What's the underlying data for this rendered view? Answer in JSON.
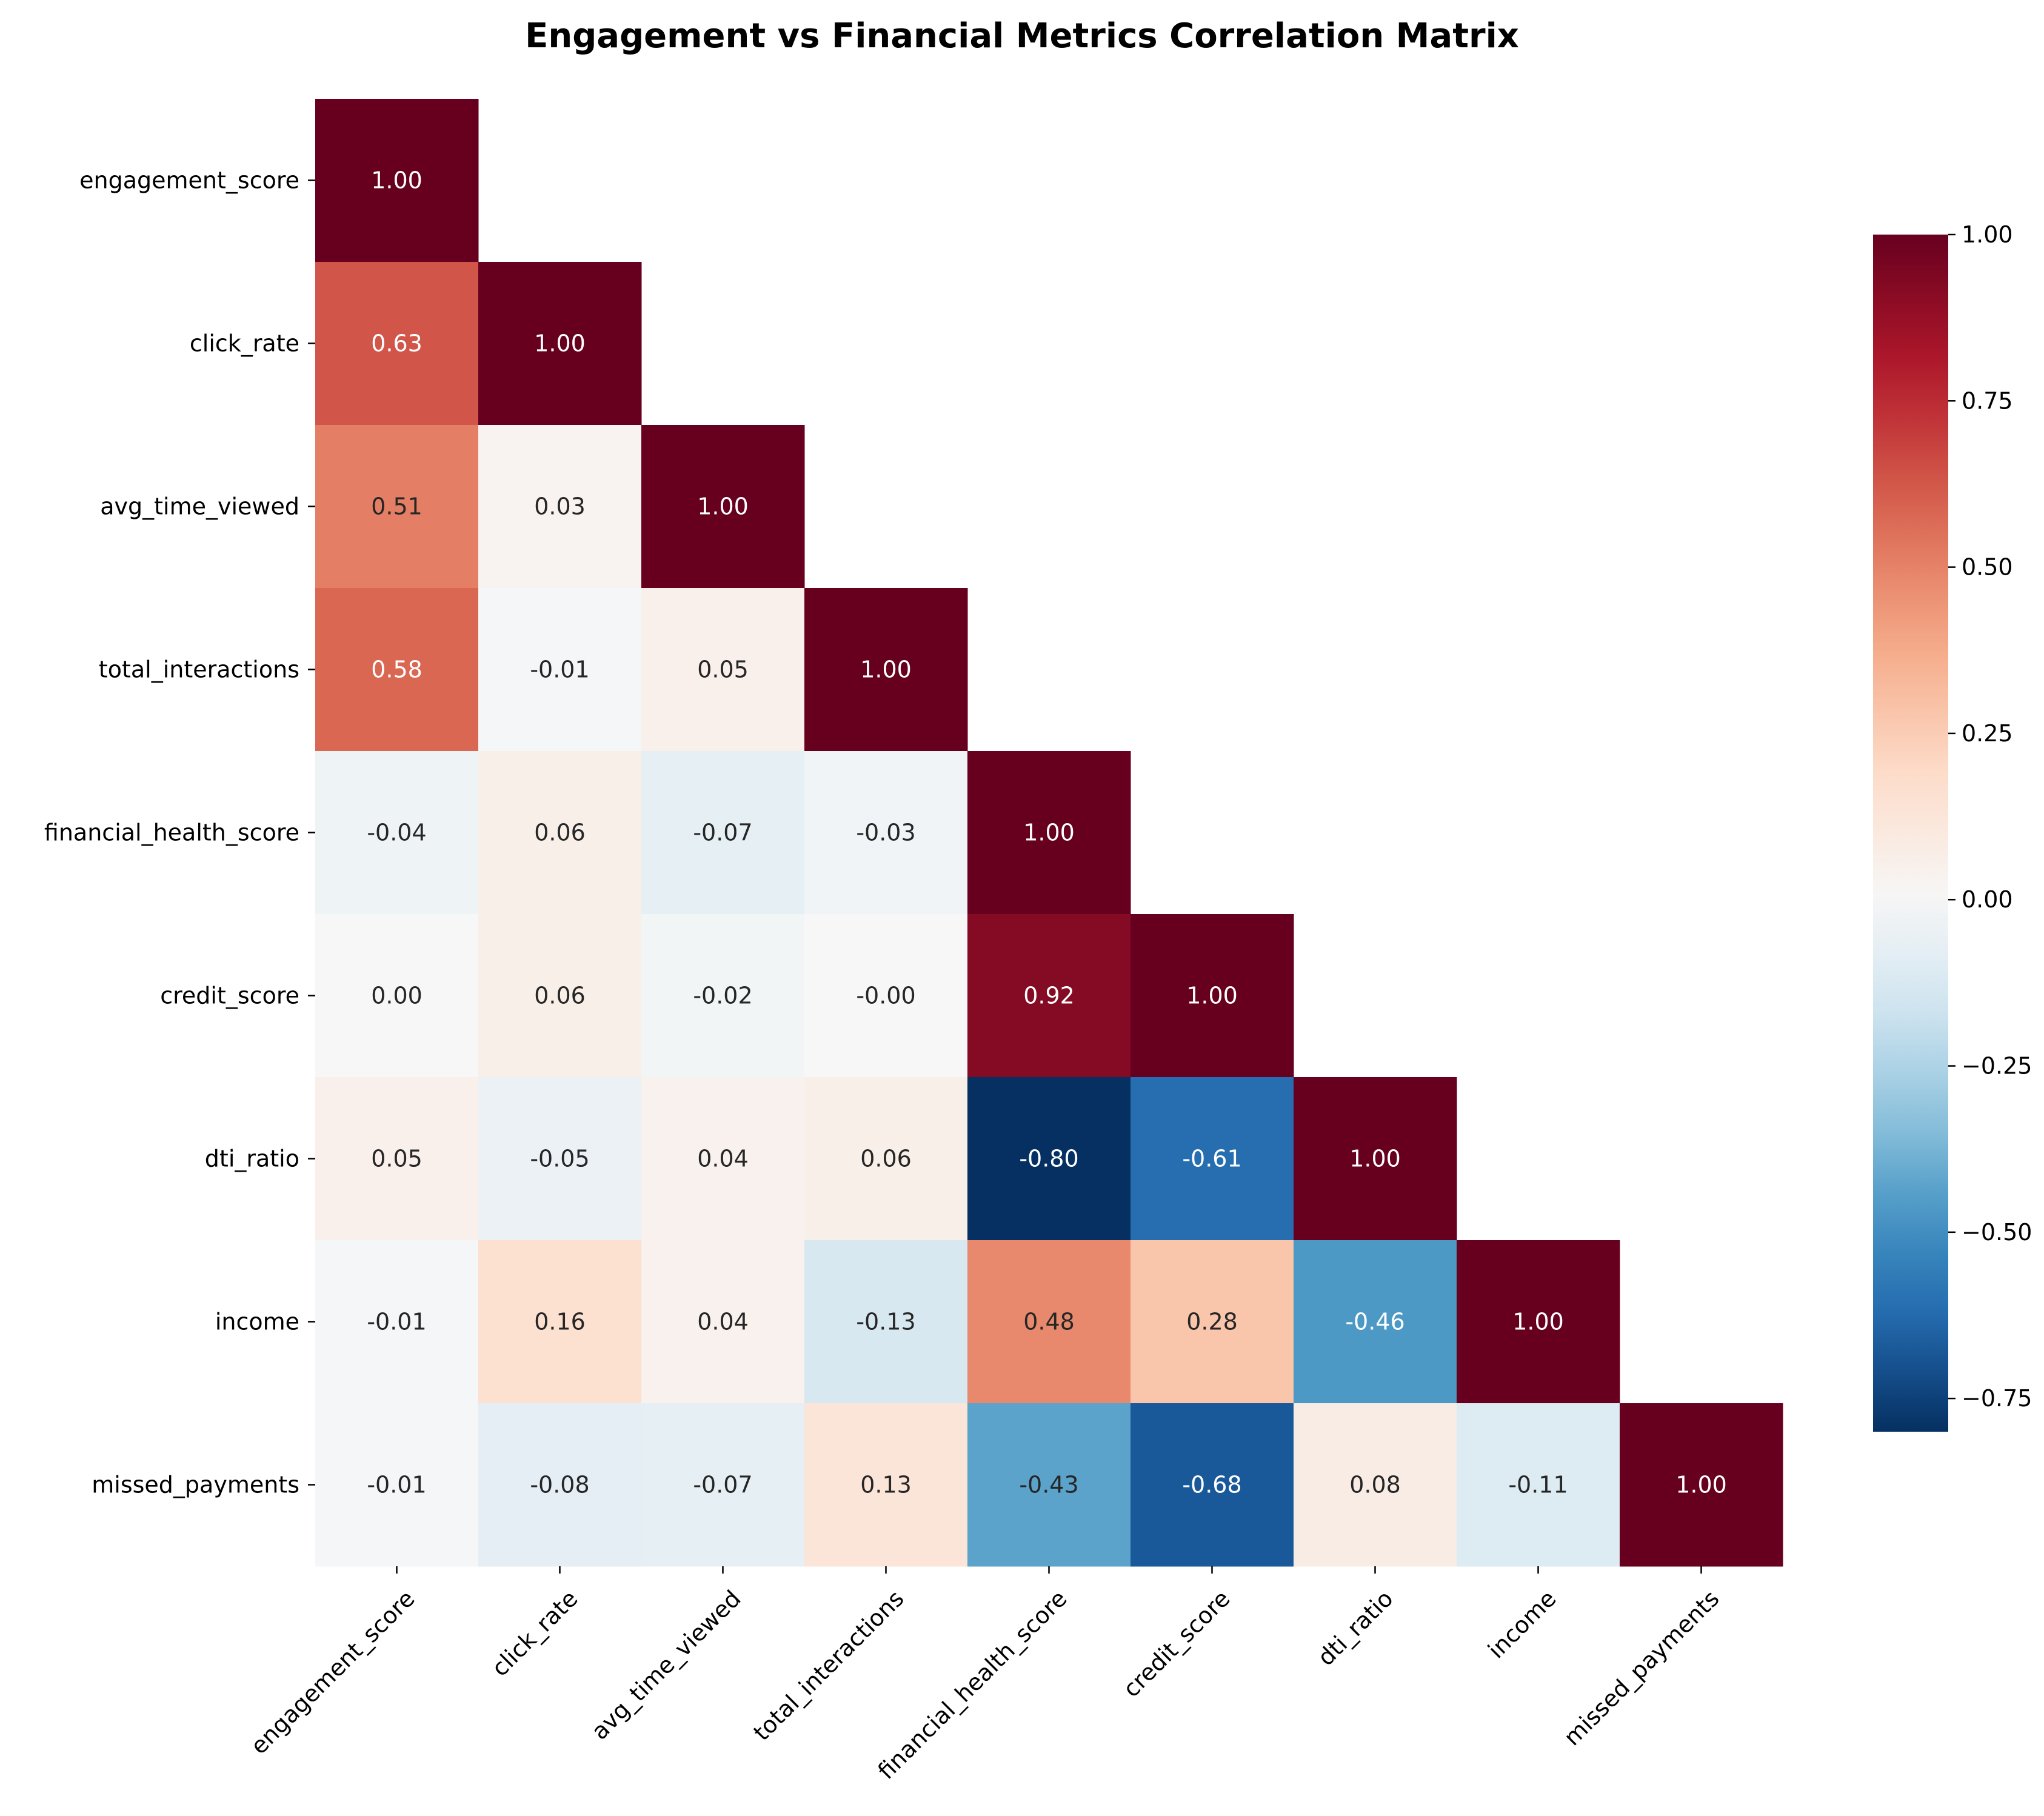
{
  "chart_data": {
    "type": "heatmap",
    "title": "Engagement vs Financial Metrics Correlation Matrix",
    "variables": [
      "engagement_score",
      "click_rate",
      "avg_time_viewed",
      "total_interactions",
      "financial_health_score",
      "credit_score",
      "dti_ratio",
      "income",
      "missed_payments"
    ],
    "matrix": [
      [
        "1.00"
      ],
      [
        "0.63",
        "1.00"
      ],
      [
        "0.51",
        "0.03",
        "1.00"
      ],
      [
        "0.58",
        "-0.01",
        "0.05",
        "1.00"
      ],
      [
        "-0.04",
        "0.06",
        "-0.07",
        "-0.03",
        "1.00"
      ],
      [
        "0.00",
        "0.06",
        "-0.02",
        "-0.00",
        "0.92",
        "1.00"
      ],
      [
        "0.05",
        "-0.05",
        "0.04",
        "0.06",
        "-0.80",
        "-0.61",
        "1.00"
      ],
      [
        "-0.01",
        "0.16",
        "0.04",
        "-0.13",
        "0.48",
        "0.28",
        "-0.46",
        "1.00"
      ],
      [
        "-0.01",
        "-0.08",
        "-0.07",
        "0.13",
        "-0.43",
        "-0.68",
        "0.08",
        "-0.11",
        "1.00"
      ]
    ],
    "mask": "upper triangle hidden",
    "colormap": "RdBu_r",
    "vmin": -0.8,
    "vmax": 1.0,
    "colorbar_ticks": [
      "1.00",
      "0.75",
      "0.50",
      "0.25",
      "0.00",
      "−0.25",
      "−0.50",
      "−0.75"
    ],
    "grid": false,
    "legend": "colorbar right"
  }
}
